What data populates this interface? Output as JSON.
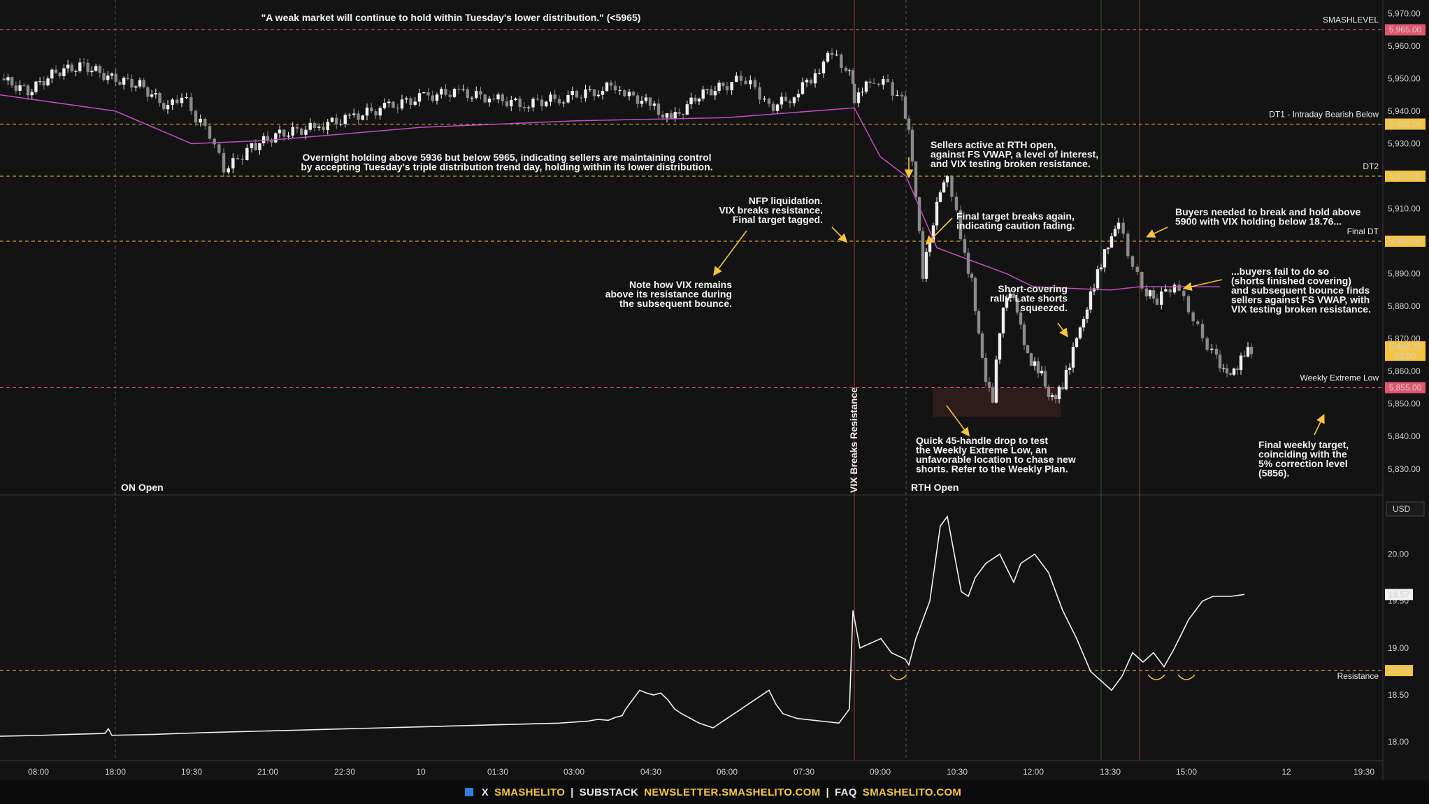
{
  "chart_data": [
    {
      "type": "candlestick",
      "panel": "price",
      "ylim": [
        5822,
        5972
      ],
      "y_ticks": [
        "5,970.00",
        "5,960.00",
        "5,950.00",
        "5,940.00",
        "5,930.00",
        "5,920.00",
        "5,910.00",
        "5,900.00",
        "5,890.00",
        "5,880.00",
        "5,870.00",
        "5,860.00",
        "5,850.00",
        "5,840.00",
        "5,830.00"
      ],
      "x_ticks": [
        "08:00",
        "18:00",
        "19:30",
        "21:00",
        "22:30",
        "10",
        "01:30",
        "03:00",
        "04:30",
        "06:00",
        "07:30",
        "09:00",
        "10:30",
        "12:00",
        "13:30",
        "15:00",
        "12",
        "19:30"
      ],
      "ohlc_path": [
        5950,
        5946,
        5952,
        5954,
        5950,
        5948,
        5941,
        5945,
        5938,
        5933,
        5922,
        5925,
        5929,
        5933,
        5935,
        5938,
        5941,
        5944,
        5946,
        5944,
        5942,
        5944,
        5946,
        5948,
        5945,
        5942,
        5937,
        5945,
        5948,
        5950,
        5947,
        5941,
        5944,
        5950,
        5958,
        5953,
        5949,
        5941,
        5945,
        5950,
        5948,
        5943,
        5935,
        5915,
        5890,
        5906,
        5915,
        5919,
        5908,
        5895,
        5888,
        5872,
        5858,
        5852,
        5873,
        5883,
        5882,
        5873,
        5864,
        5862,
        5860,
        5853,
        5853,
        5856,
        5862,
        5870,
        5875,
        5883,
        5890,
        5897,
        5902,
        5907,
        5892,
        5884,
        5882,
        5887,
        5879,
        5870,
        5864,
        5861,
        5860,
        5862,
        5866,
        5866
      ],
      "vwap": [
        {
          "t": "08:00",
          "v": 5945
        },
        {
          "t": "18:00",
          "v": 5940
        },
        {
          "t": "19:30",
          "v": 5930
        },
        {
          "t": "21:00",
          "v": 5931
        },
        {
          "t": "22:30",
          "v": 5933
        },
        {
          "t": "10",
          "v": 5935
        },
        {
          "t": "03:00",
          "v": 5937
        },
        {
          "t": "06:00",
          "v": 5938
        },
        {
          "t": "07:30",
          "v": 5941
        },
        {
          "t": "09:00",
          "v": 5926
        },
        {
          "t": "09:30",
          "v": 5920
        },
        {
          "t": "10:00",
          "v": 5898
        },
        {
          "t": "11:00",
          "v": 5890
        },
        {
          "t": "12:00",
          "v": 5886
        },
        {
          "t": "13:30",
          "v": 5885
        },
        {
          "t": "14:00",
          "v": 5886
        },
        {
          "t": "15:00",
          "v": 5886
        }
      ],
      "levels": [
        {
          "value": 5965,
          "label": "SMASHLEVEL",
          "price": "5,965.00",
          "color": "#e0566c",
          "style": "dashed"
        },
        {
          "value": 5936,
          "label": "DT1 - Intraday Bearish Below",
          "price": "5,936.00",
          "color": "#f5c542",
          "style": "dashed"
        },
        {
          "value": 5920,
          "label": "DT2",
          "price": "5,920.00",
          "color": "#f5c542",
          "style": "dashed"
        },
        {
          "value": 5900,
          "label": "Final DT",
          "price": "5,900.00",
          "color": "#f5c542",
          "style": "dashed"
        },
        {
          "value": 5855,
          "label": "Weekly Extreme Low",
          "price": "5,855.00",
          "color": "#e0566c",
          "style": "dashed"
        }
      ],
      "last_price": {
        "value": "5,866.25",
        "countdown": "03:00",
        "color": "#f5c542"
      },
      "session_labels": [
        "ON Open",
        "RTH Open"
      ],
      "vertical_markers": [
        "VIX Breaks Resistance"
      ]
    },
    {
      "type": "line",
      "panel": "vix",
      "ylim": [
        17.8,
        20.6
      ],
      "y_ticks": [
        "20.00",
        "19.50",
        "19.00",
        "18.50",
        "18.00"
      ],
      "currency": "USD",
      "values": [
        18.06,
        18.07,
        18.08,
        18.09,
        18.14,
        18.07,
        18.08,
        18.1,
        18.12,
        18.14,
        18.16,
        18.18,
        18.2,
        18.22,
        18.24,
        18.23,
        18.26,
        18.28,
        18.35,
        18.45,
        18.55,
        18.52,
        18.5,
        18.52,
        18.45,
        18.35,
        18.3,
        18.2,
        18.15,
        18.25,
        18.35,
        18.45,
        18.55,
        18.4,
        18.3,
        18.25,
        18.2,
        18.35,
        19.4,
        19.0,
        19.05,
        19.1,
        18.95,
        18.88,
        18.82,
        19.1,
        19.3,
        19.5,
        20.3,
        20.4,
        20.0,
        19.6,
        19.55,
        19.75,
        19.9,
        19.95,
        20.0,
        19.85,
        19.7,
        19.9,
        20.0,
        19.8,
        19.4,
        19.1,
        18.75,
        18.65,
        18.55,
        18.7,
        18.95,
        18.85,
        18.95,
        18.8,
        19.0,
        19.3,
        19.5,
        19.55,
        19.55,
        19.57
      ],
      "last_value": "19.57",
      "level": {
        "value": 18.76,
        "label": "Resistance",
        "price": "18.76",
        "color": "#f5c542"
      }
    }
  ],
  "annotations": {
    "quote": "\"A weak market will continue to hold within Tuesday's lower distribution.\" (<5965)",
    "overnight": [
      "Overnight holding above 5936 but below 5965, indicating sellers are maintaining control",
      "by accepting Tuesday's triple distribution trend day, holding within its lower distribution."
    ],
    "nfp": [
      "NFP liquidation.",
      "VIX breaks resistance.",
      "Final target tagged."
    ],
    "vix_note": [
      "Note how VIX remains",
      "above its resistance during",
      "the subsequent bounce."
    ],
    "sellers": [
      "Sellers active at RTH open,",
      "against FS VWAP, a level of interest,",
      "and VIX testing broken resistance."
    ],
    "final_target": [
      "Final target breaks again,",
      "indicating caution fading."
    ],
    "short_cover": [
      "Short-covering",
      "rally. Late shorts",
      "squeezed."
    ],
    "quick_drop": [
      "Quick 45-handle drop to test",
      "the Weekly Extreme Low, an",
      "unfavorable location to chase new",
      "shorts. Refer to the Weekly Plan."
    ],
    "buyers_needed": [
      "Buyers needed to break and hold above",
      "5900 with VIX holding below 18.76..."
    ],
    "buyers_fail": [
      "...buyers fail to do so",
      "(shorts finished covering)",
      "and subsequent bounce finds",
      "sellers against FS VWAP, with",
      "VIX testing broken resistance."
    ],
    "weekly_target": [
      "Final weekly target,",
      "coinciding with the",
      "5% correction level",
      "(5856)."
    ]
  },
  "footer": {
    "x_label": "X",
    "x_handle": "SMASHELITO",
    "substack_label": "SUBSTACK",
    "substack_url": "NEWSLETTER.SMASHELITO.COM",
    "faq_label": "FAQ",
    "faq_url": "SMASHELITO.COM",
    "sep": "|"
  },
  "colors": {
    "background": "#131313",
    "candle_up": "#f0f0f0",
    "candle_down": "#8a8a8a",
    "vwap": "#c04fc0",
    "accent": "#f5c542",
    "danger": "#e0566c"
  }
}
